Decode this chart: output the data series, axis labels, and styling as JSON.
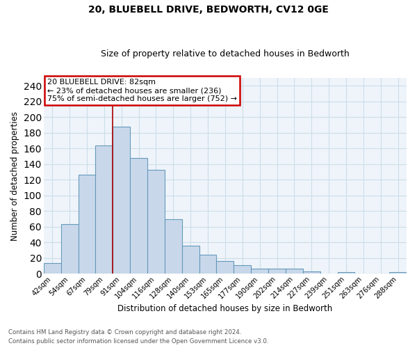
{
  "title1": "20, BLUEBELL DRIVE, BEDWORTH, CV12 0GE",
  "title2": "Size of property relative to detached houses in Bedworth",
  "xlabel": "Distribution of detached houses by size in Bedworth",
  "ylabel": "Number of detached properties",
  "footnote1": "Contains HM Land Registry data © Crown copyright and database right 2024.",
  "footnote2": "Contains public sector information licensed under the Open Government Licence v3.0.",
  "categories": [
    "42sqm",
    "54sqm",
    "67sqm",
    "79sqm",
    "91sqm",
    "104sqm",
    "116sqm",
    "128sqm",
    "140sqm",
    "153sqm",
    "165sqm",
    "177sqm",
    "190sqm",
    "202sqm",
    "214sqm",
    "227sqm",
    "239sqm",
    "251sqm",
    "263sqm",
    "276sqm",
    "288sqm"
  ],
  "values": [
    13,
    63,
    126,
    164,
    188,
    148,
    133,
    69,
    36,
    24,
    16,
    11,
    6,
    6,
    6,
    3,
    0,
    2,
    0,
    0,
    2
  ],
  "bar_color": "#c8d8ea",
  "bar_edge_color": "#6699bb",
  "grid_color": "#ccdde8",
  "background_color": "#eef4fa",
  "vline_color": "#aa0000",
  "annotation_line1": "20 BLUEBELL DRIVE: 82sqm",
  "annotation_line2": "← 23% of detached houses are smaller (236)",
  "annotation_line3": "75% of semi-detached houses are larger (752) →",
  "annotation_box_color": "#ffffff",
  "annotation_box_edge_color": "#cc0000",
  "ylim": [
    0,
    250
  ],
  "yticks": [
    0,
    20,
    40,
    60,
    80,
    100,
    120,
    140,
    160,
    180,
    200,
    220,
    240
  ],
  "vline_index": 3.5
}
